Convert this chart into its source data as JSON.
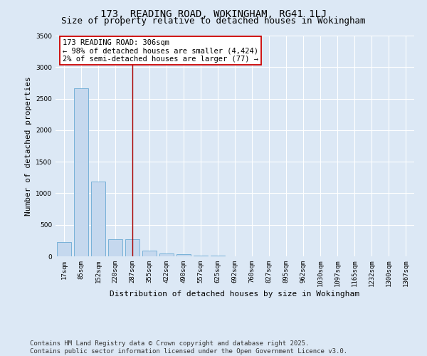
{
  "title": "173, READING ROAD, WOKINGHAM, RG41 1LJ",
  "subtitle": "Size of property relative to detached houses in Wokingham",
  "xlabel": "Distribution of detached houses by size in Wokingham",
  "ylabel": "Number of detached properties",
  "categories": [
    "17sqm",
    "85sqm",
    "152sqm",
    "220sqm",
    "287sqm",
    "355sqm",
    "422sqm",
    "490sqm",
    "557sqm",
    "625sqm",
    "692sqm",
    "760sqm",
    "827sqm",
    "895sqm",
    "962sqm",
    "1030sqm",
    "1097sqm",
    "1165sqm",
    "1232sqm",
    "1300sqm",
    "1367sqm"
  ],
  "values": [
    230,
    2660,
    1190,
    270,
    270,
    95,
    50,
    30,
    15,
    8,
    5,
    3,
    2,
    2,
    1,
    1,
    1,
    1,
    1,
    1,
    1
  ],
  "bar_color": "#c5d8ee",
  "bar_edge_color": "#6aaad4",
  "vline_x_index": 4,
  "vline_color": "#aa0000",
  "annotation_text": "173 READING ROAD: 306sqm\n← 98% of detached houses are smaller (4,424)\n2% of semi-detached houses are larger (77) →",
  "annotation_box_color": "#ffffff",
  "annotation_box_edge": "#cc0000",
  "ylim": [
    0,
    3500
  ],
  "yticks": [
    0,
    500,
    1000,
    1500,
    2000,
    2500,
    3000,
    3500
  ],
  "footer_line1": "Contains HM Land Registry data © Crown copyright and database right 2025.",
  "footer_line2": "Contains public sector information licensed under the Open Government Licence v3.0.",
  "bg_color": "#dce8f5",
  "plot_bg_color": "#dce8f5",
  "grid_color": "#ffffff",
  "title_fontsize": 10,
  "subtitle_fontsize": 9,
  "axis_label_fontsize": 8,
  "tick_fontsize": 6.5,
  "annotation_fontsize": 7.5,
  "footer_fontsize": 6.5
}
